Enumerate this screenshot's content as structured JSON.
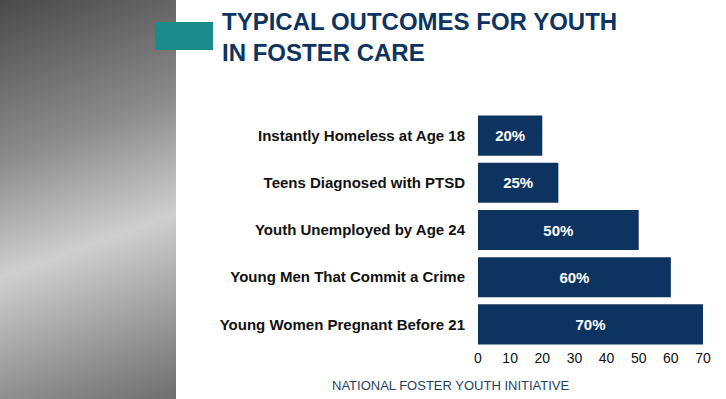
{
  "chart_data": {
    "type": "bar",
    "orientation": "horizontal",
    "title": "TYPICAL OUTCOMES FOR YOUTH IN FOSTER CARE",
    "source": "NATIONAL FOSTER YOUTH INITIATIVE",
    "categories": [
      "Instantly Homeless at Age 18",
      "Teens Diagnosed with PTSD",
      "Youth Unemployed by Age 24",
      "Young Men That Commit a Crime",
      "Young Women Pregnant Before 21"
    ],
    "values": [
      20,
      25,
      50,
      60,
      70
    ],
    "value_labels": [
      "20%",
      "25%",
      "50%",
      "60%",
      "70%"
    ],
    "color": "#0d3460",
    "xlim": [
      0,
      70
    ],
    "xticks": [
      0,
      10,
      20,
      30,
      40,
      50,
      60,
      70
    ],
    "grid": false,
    "data_labels": true
  }
}
